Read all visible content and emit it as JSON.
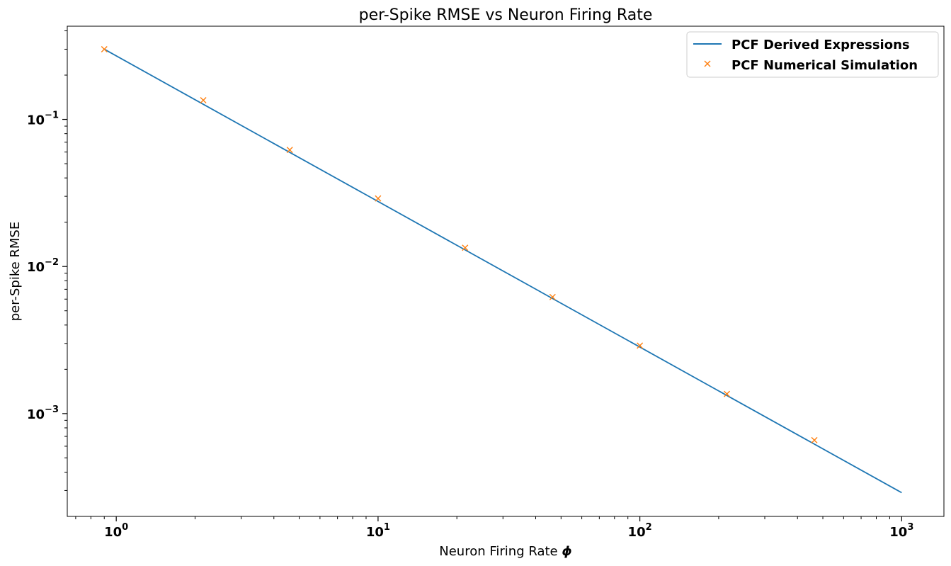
{
  "chart_data": {
    "type": "line",
    "title": "per-Spike RMSE vs Neuron Firing Rate",
    "xlabel": "Neuron Firing Rate",
    "xlabel_symbol": "ϕ",
    "ylabel": "per-Spike RMSE",
    "xscale": "log",
    "yscale": "log",
    "xlim": [
      0.65,
      1450
    ],
    "ylim": [
      0.0002,
      0.43
    ],
    "x_ticks": [
      {
        "value": 1,
        "base": "10",
        "exp": "0"
      },
      {
        "value": 10,
        "base": "10",
        "exp": "1"
      },
      {
        "value": 100,
        "base": "10",
        "exp": "2"
      },
      {
        "value": 1000,
        "base": "10",
        "exp": "3"
      }
    ],
    "y_ticks": [
      {
        "value": 0.001,
        "base": "10",
        "exp": "−3"
      },
      {
        "value": 0.01,
        "base": "10",
        "exp": "−2"
      },
      {
        "value": 0.1,
        "base": "10",
        "exp": "−1"
      }
    ],
    "grid": false,
    "legend_position": "top-right",
    "series": [
      {
        "name": "PCF Derived Expressions",
        "style": "line",
        "color": "#1f77b4",
        "x": [
          0.9,
          1000
        ],
        "y": [
          0.3,
          0.00029
        ]
      },
      {
        "name": "PCF Numerical Simulation",
        "style": "marker-x",
        "color": "#ff7f0e",
        "x": [
          0.9,
          2.15,
          4.6,
          10,
          21.5,
          46.4,
          100,
          215,
          464
        ],
        "y": [
          0.3,
          0.135,
          0.062,
          0.029,
          0.0134,
          0.0062,
          0.0029,
          0.00136,
          0.00066
        ]
      }
    ]
  }
}
